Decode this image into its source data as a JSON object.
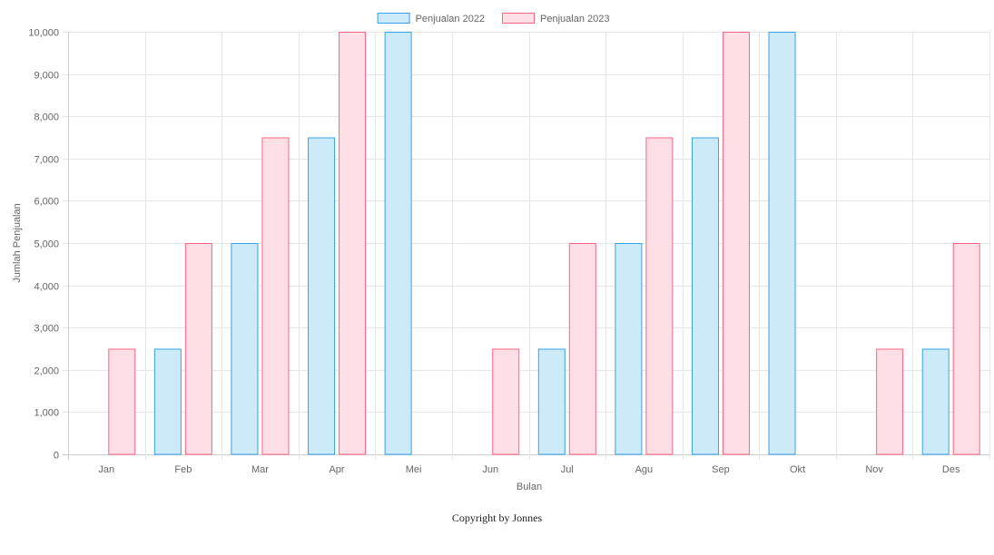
{
  "chart_data": {
    "type": "bar",
    "title": "",
    "xlabel": "Bulan",
    "ylabel": "Jumlah Penjualan",
    "categories": [
      "Jan",
      "Feb",
      "Mar",
      "Apr",
      "Mei",
      "Jun",
      "Jul",
      "Agu",
      "Sep",
      "Okt",
      "Nov",
      "Des"
    ],
    "series": [
      {
        "name": "Penjualan 2022",
        "values": [
          0,
          2500,
          5000,
          7500,
          10000,
          0,
          2500,
          5000,
          7500,
          10000,
          0,
          2500
        ],
        "fill": "#cdeaf8",
        "stroke": "#36a2eb"
      },
      {
        "name": "Penjualan 2023",
        "values": [
          2500,
          5000,
          7500,
          10000,
          0,
          2500,
          5000,
          7500,
          10000,
          0,
          2500,
          5000
        ],
        "fill": "#fddfe5",
        "stroke": "#ff6384"
      }
    ],
    "ylim": [
      0,
      10000
    ],
    "yticks": [
      "0",
      "1,000",
      "2,000",
      "3,000",
      "4,000",
      "5,000",
      "6,000",
      "7,000",
      "8,000",
      "9,000",
      "10,000"
    ],
    "grid": true,
    "legend_position": "top-center"
  },
  "footer": {
    "text": "Copyright by Jonnes"
  }
}
